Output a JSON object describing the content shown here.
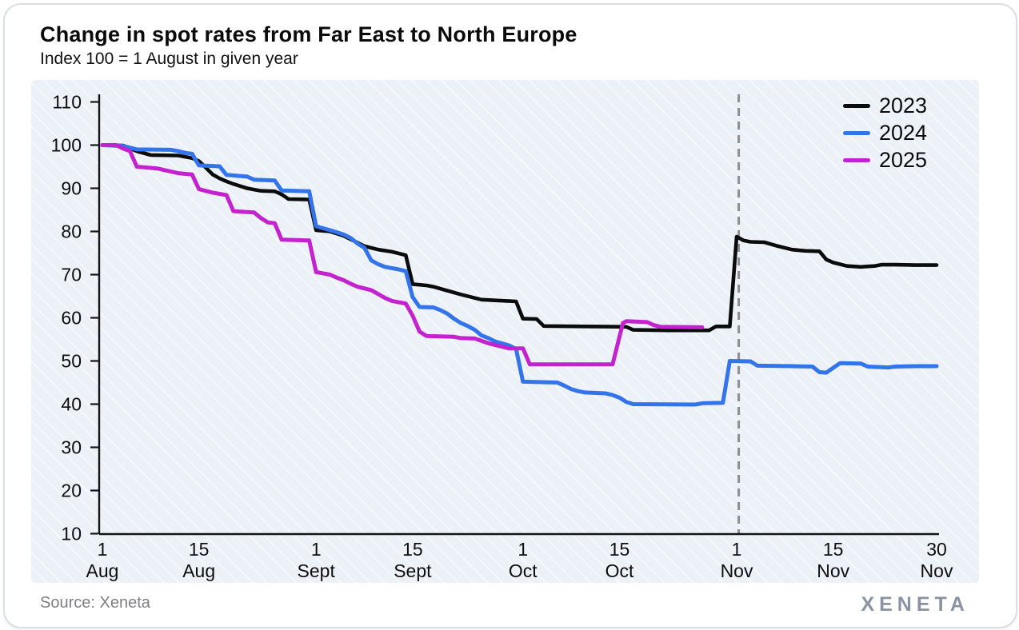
{
  "header": {
    "title": "Change in spot rates from Far East to North Europe",
    "subtitle": "Index 100 = 1 August in given year"
  },
  "footer": {
    "source": "Source: Xeneta",
    "logo": "XENETA"
  },
  "chart_data": {
    "type": "line",
    "title": "Change in spot rates from Far East to North Europe",
    "subtitle": "Index 100 = 1 August in given year",
    "xlabel": "",
    "ylabel": "",
    "grid": false,
    "legend_position": "top-right",
    "background_color": "#ecf1f8",
    "x_axis": {
      "unit": "days since 1 August",
      "range": [
        0,
        121
      ],
      "ticks": [
        {
          "day": 0,
          "line1": "1",
          "line2": "Aug"
        },
        {
          "day": 14,
          "line1": "15",
          "line2": "Aug"
        },
        {
          "day": 31,
          "line1": "1",
          "line2": "Sept"
        },
        {
          "day": 45,
          "line1": "15",
          "line2": "Sept"
        },
        {
          "day": 61,
          "line1": "1",
          "line2": "Oct"
        },
        {
          "day": 75,
          "line1": "15",
          "line2": "Oct"
        },
        {
          "day": 92,
          "line1": "1",
          "line2": "Nov"
        },
        {
          "day": 106,
          "line1": "15",
          "line2": "Nov"
        },
        {
          "day": 121,
          "line1": "30",
          "line2": "Nov"
        }
      ]
    },
    "y_axis": {
      "range": [
        10,
        110
      ],
      "ticks": [
        110,
        100,
        90,
        80,
        70,
        60,
        50,
        40,
        30,
        20,
        10
      ]
    },
    "annotations": {
      "dashed_vline_day": 92.3,
      "dashed_vline_color": "#8e8e8e"
    },
    "series": [
      {
        "name": "2023",
        "color": "#0b0b0b",
        "points": [
          [
            0,
            100
          ],
          [
            3,
            99.9
          ],
          [
            5,
            98.6
          ],
          [
            7,
            97.7
          ],
          [
            11,
            97.6
          ],
          [
            13,
            97
          ],
          [
            14,
            96.3
          ],
          [
            15,
            94.8
          ],
          [
            16,
            93.2
          ],
          [
            17,
            92.3
          ],
          [
            18,
            91.6
          ],
          [
            19,
            91
          ],
          [
            20,
            90.5
          ],
          [
            21,
            90
          ],
          [
            22,
            89.7
          ],
          [
            23,
            89.4
          ],
          [
            25,
            89.3
          ],
          [
            26,
            88.6
          ],
          [
            27,
            87.5
          ],
          [
            30,
            87.4
          ],
          [
            31,
            80.3
          ],
          [
            33,
            80
          ],
          [
            34,
            79.5
          ],
          [
            35,
            79
          ],
          [
            36,
            78.2
          ],
          [
            37,
            77.4
          ],
          [
            38,
            76.6
          ],
          [
            40,
            75.8
          ],
          [
            42,
            75.3
          ],
          [
            44,
            74.5
          ],
          [
            45,
            67.8
          ],
          [
            47,
            67.5
          ],
          [
            48,
            67.2
          ],
          [
            50,
            66.3
          ],
          [
            52,
            65.4
          ],
          [
            54,
            64.6
          ],
          [
            55,
            64.2
          ],
          [
            60,
            63.8
          ],
          [
            61,
            59.8
          ],
          [
            63,
            59.7
          ],
          [
            64,
            58.1
          ],
          [
            70,
            58
          ],
          [
            76,
            57.9
          ],
          [
            77,
            57.2
          ],
          [
            82,
            57.1
          ],
          [
            88,
            57.1
          ],
          [
            89,
            58
          ],
          [
            91,
            58
          ],
          [
            92,
            78.8
          ],
          [
            93,
            77.9
          ],
          [
            94,
            77.6
          ],
          [
            96,
            77.5
          ],
          [
            98,
            76.6
          ],
          [
            100,
            75.8
          ],
          [
            102,
            75.5
          ],
          [
            104,
            75.4
          ],
          [
            105,
            73.5
          ],
          [
            106,
            72.8
          ],
          [
            108,
            72
          ],
          [
            110,
            71.8
          ],
          [
            112,
            72
          ],
          [
            113,
            72.3
          ],
          [
            115,
            72.3
          ],
          [
            118,
            72.2
          ],
          [
            121,
            72.2
          ]
        ]
      },
      {
        "name": "2024",
        "color": "#3374eb",
        "points": [
          [
            0,
            100
          ],
          [
            3,
            99.8
          ],
          [
            5,
            99
          ],
          [
            10,
            98.9
          ],
          [
            11,
            98.6
          ],
          [
            12,
            98.2
          ],
          [
            13,
            98
          ],
          [
            14,
            95.3
          ],
          [
            17,
            95.1
          ],
          [
            18,
            93.1
          ],
          [
            21,
            92.7
          ],
          [
            22,
            92
          ],
          [
            25,
            91.8
          ],
          [
            26,
            89.5
          ],
          [
            30,
            89.3
          ],
          [
            31,
            81.2
          ],
          [
            33,
            80.3
          ],
          [
            35,
            79.3
          ],
          [
            36,
            78.5
          ],
          [
            37,
            77.2
          ],
          [
            38,
            76.2
          ],
          [
            39,
            73.3
          ],
          [
            40,
            72.4
          ],
          [
            41,
            71.8
          ],
          [
            43,
            71.2
          ],
          [
            44,
            70.8
          ],
          [
            45,
            64.8
          ],
          [
            46,
            62.5
          ],
          [
            48,
            62.4
          ],
          [
            49,
            61.8
          ],
          [
            50,
            61
          ],
          [
            51,
            59.8
          ],
          [
            52,
            58.8
          ],
          [
            53,
            58.1
          ],
          [
            54,
            57.2
          ],
          [
            55,
            55.9
          ],
          [
            56,
            55.3
          ],
          [
            57,
            54.5
          ],
          [
            59,
            53.6
          ],
          [
            60,
            52.8
          ],
          [
            61,
            45.2
          ],
          [
            66,
            45
          ],
          [
            67,
            44.3
          ],
          [
            68,
            43.5
          ],
          [
            69,
            43
          ],
          [
            70,
            42.7
          ],
          [
            73,
            42.5
          ],
          [
            74,
            42.1
          ],
          [
            75,
            41.5
          ],
          [
            76,
            40.5
          ],
          [
            77,
            40
          ],
          [
            86,
            39.9
          ],
          [
            87,
            40.2
          ],
          [
            90,
            40.3
          ],
          [
            91,
            50
          ],
          [
            94,
            49.9
          ],
          [
            95,
            48.9
          ],
          [
            100,
            48.8
          ],
          [
            103,
            48.7
          ],
          [
            104,
            47.4
          ],
          [
            105,
            47.3
          ],
          [
            107,
            49.5
          ],
          [
            110,
            49.4
          ],
          [
            111,
            48.7
          ],
          [
            114,
            48.5
          ],
          [
            115,
            48.7
          ],
          [
            118,
            48.8
          ],
          [
            121,
            48.8
          ]
        ]
      },
      {
        "name": "2025",
        "color": "#c322ce",
        "points": [
          [
            0,
            100
          ],
          [
            2,
            100
          ],
          [
            3,
            99.2
          ],
          [
            4,
            98.6
          ],
          [
            5,
            95
          ],
          [
            8,
            94.6
          ],
          [
            9,
            94.2
          ],
          [
            11,
            93.5
          ],
          [
            13,
            93.2
          ],
          [
            14,
            89.8
          ],
          [
            16,
            89
          ],
          [
            17,
            88.7
          ],
          [
            18,
            88.4
          ],
          [
            19,
            84.7
          ],
          [
            22,
            84.4
          ],
          [
            23,
            83.1
          ],
          [
            24,
            82.1
          ],
          [
            25,
            81.9
          ],
          [
            26,
            78.1
          ],
          [
            30,
            77.9
          ],
          [
            31,
            70.6
          ],
          [
            33,
            70
          ],
          [
            34,
            69.3
          ],
          [
            35,
            68.7
          ],
          [
            36,
            67.9
          ],
          [
            37,
            67.2
          ],
          [
            39,
            66.4
          ],
          [
            40,
            65.5
          ],
          [
            41,
            64.6
          ],
          [
            42,
            63.9
          ],
          [
            44,
            63.3
          ],
          [
            45,
            60.5
          ],
          [
            46,
            56.8
          ],
          [
            47,
            55.8
          ],
          [
            51,
            55.6
          ],
          [
            52,
            55.3
          ],
          [
            54,
            55.2
          ],
          [
            56,
            54.1
          ],
          [
            58,
            53.3
          ],
          [
            59,
            52.9
          ],
          [
            61,
            52.9
          ],
          [
            62,
            49.2
          ],
          [
            74,
            49.2
          ],
          [
            75.5,
            58.8
          ],
          [
            76,
            59.2
          ],
          [
            79,
            59
          ],
          [
            80,
            58.3
          ],
          [
            81,
            57.9
          ],
          [
            87,
            57.8
          ]
        ]
      }
    ]
  }
}
